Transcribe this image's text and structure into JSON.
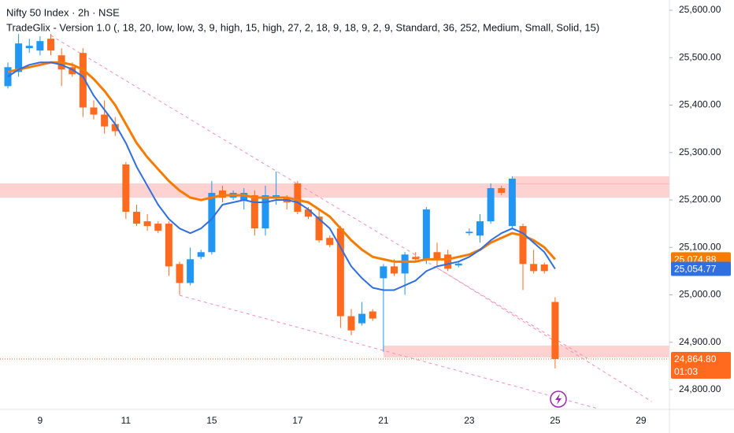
{
  "chart_data": {
    "type": "candlestick",
    "title": "Nifty 50 Index · 2h · NSE",
    "subtitle": "TradeGlix - Version 1.0 (, 18, 20, low, low, 3, 9, high, 15, high, 27, 2, 18, 9, 18, 9, 2, 9, Standard, 36, 252, Medium, Small, Solid, 15)",
    "categories": [
      null,
      null,
      null,
      "9",
      null,
      null,
      null,
      null,
      null,
      null,
      null,
      "11",
      null,
      null,
      null,
      null,
      null,
      null,
      null,
      "15",
      null,
      null,
      null,
      null,
      null,
      null,
      null,
      "17",
      null,
      null,
      null,
      null,
      null,
      null,
      null,
      "21",
      null,
      null,
      null,
      null,
      null,
      null,
      null,
      "23",
      null,
      null,
      null,
      null,
      null,
      null,
      null,
      "25",
      null,
      null,
      null,
      null,
      null,
      null,
      null,
      "29"
    ],
    "open": [
      25440,
      25470,
      25520,
      25515,
      25540,
      25505,
      25480,
      25510,
      25395,
      25380,
      25360,
      25275,
      25175,
      25155,
      25150,
      25150,
      25065,
      25025,
      25080,
      25090,
      25220,
      25205,
      25200,
      25210,
      25140,
      25205,
      25205,
      25235,
      25180,
      25165,
      25120,
      25140,
      24955,
      24940,
      24965,
      25035,
      25060,
      25045,
      25080,
      25075,
      25090,
      25085,
      25062,
      25130,
      25125,
      25155,
      25225,
      25145,
      25145,
      25065,
      25064,
      24985,
      null,
      null,
      null,
      null,
      null,
      null,
      null,
      null
    ],
    "high": [
      25490,
      25550,
      25540,
      25545,
      25550,
      25520,
      25490,
      25520,
      25410,
      25410,
      25375,
      25280,
      25190,
      25170,
      25155,
      25155,
      25070,
      25100,
      25095,
      25240,
      25230,
      25220,
      25225,
      25220,
      25230,
      25260,
      25210,
      25240,
      25185,
      25180,
      25125,
      25145,
      24970,
      24985,
      24970,
      25065,
      25075,
      25090,
      25090,
      25185,
      25110,
      25095,
      25070,
      25140,
      25170,
      25235,
      25230,
      25250,
      25150,
      25095,
      25068,
      24995,
      null,
      null,
      null,
      null,
      null,
      null,
      null,
      null
    ],
    "low": [
      25435,
      25460,
      25510,
      25505,
      25505,
      25440,
      25460,
      25375,
      25370,
      25340,
      25335,
      25160,
      25145,
      25135,
      25130,
      25040,
      25000,
      25020,
      25075,
      25085,
      25195,
      25200,
      25180,
      25125,
      25125,
      25190,
      25180,
      25170,
      25160,
      25110,
      25100,
      24930,
      24915,
      24935,
      24945,
      24880,
      25040,
      25000,
      25070,
      25065,
      25060,
      25050,
      25058,
      25125,
      25110,
      25150,
      25210,
      25140,
      25010,
      25045,
      25045,
      24845,
      null,
      null,
      null,
      null,
      null,
      null,
      null,
      null
    ],
    "close": [
      25480,
      25530,
      25525,
      25535,
      25515,
      25475,
      25465,
      25395,
      25380,
      25355,
      25345,
      25175,
      25150,
      25145,
      25135,
      25060,
      25025,
      25075,
      25090,
      25215,
      25205,
      25215,
      25215,
      25140,
      25210,
      25210,
      25195,
      25175,
      25165,
      25115,
      25105,
      24955,
      24925,
      24960,
      24950,
      25060,
      25045,
      25085,
      25075,
      25180,
      25075,
      25055,
      25066,
      25133,
      25155,
      25225,
      25215,
      25245,
      25065,
      25050,
      25050,
      24864.8,
      null,
      null,
      null,
      null,
      null,
      null,
      null,
      null
    ],
    "up_color": "#2196f3",
    "down_color": "#ff6a1f",
    "lines": [
      {
        "color": "#f57c00",
        "width": 3,
        "values": [
          25470,
          25475,
          25480,
          25485,
          25490,
          25490,
          25485,
          25475,
          25455,
          25430,
          25400,
          25360,
          25320,
          25290,
          25265,
          25240,
          25220,
          25205,
          25200,
          25205,
          25210,
          25210,
          25210,
          25205,
          25205,
          25205,
          25205,
          25200,
          25195,
          25180,
          25165,
          25140,
          25115,
          25095,
          25080,
          25075,
          25070,
          25070,
          25070,
          25075,
          25075,
          25075,
          25080,
          25085,
          25095,
          25110,
          25120,
          25130,
          25125,
          25115,
          25100,
          25074.88,
          null,
          null,
          null,
          null,
          null,
          null,
          null,
          null
        ],
        "tag": "25,074.88"
      },
      {
        "color": "#2f6fe0",
        "width": 2,
        "values": [
          25460,
          25475,
          25485,
          25490,
          25490,
          25485,
          25475,
          25460,
          25420,
          25390,
          25360,
          25320,
          25270,
          25230,
          25190,
          25160,
          25140,
          25130,
          25140,
          25160,
          25190,
          25195,
          25200,
          25195,
          25195,
          25200,
          25200,
          25195,
          25180,
          25160,
          25140,
          25100,
          25060,
          25035,
          25015,
          25010,
          25010,
          25020,
          25030,
          25050,
          25060,
          25065,
          25070,
          25080,
          25095,
          25115,
          25130,
          25140,
          25130,
          25110,
          25090,
          25054.77,
          null,
          null,
          null,
          null,
          null,
          null,
          null,
          null
        ],
        "tag": "25,054.77"
      }
    ],
    "last_price": {
      "value": 24864.8,
      "label": "24,864.80",
      "countdown": "01:03",
      "color": "#ff6a1f"
    },
    "zones": [
      {
        "from": 0,
        "low": 25205,
        "high": 25235
      },
      {
        "from": 47,
        "low": 25233,
        "high": 25250
      },
      {
        "from": 35,
        "low": 24868,
        "high": 24893
      }
    ],
    "trendlines": [
      {
        "x": [
          4,
          54
        ],
        "y": [
          25547,
          24866
        ]
      },
      {
        "x": [
          16,
          55
        ],
        "y": [
          24999,
          24760
        ]
      },
      {
        "x": [
          40,
          60
        ],
        "y": [
          25057,
          24775
        ]
      }
    ],
    "ylim": [
      24758.5,
      25621.6
    ],
    "yticks": [
      {
        "value": 24800,
        "label": "24,800.00"
      },
      {
        "value": 24900,
        "label": "24,900.00"
      },
      {
        "value": 25000,
        "label": "25,000.00"
      },
      {
        "value": 25100,
        "label": "25,100.00"
      },
      {
        "value": 25200,
        "label": "25,200.00"
      },
      {
        "value": 25300,
        "label": "25,300.00"
      },
      {
        "value": 25400,
        "label": "25,400.00"
      },
      {
        "value": 25500,
        "label": "25,500.00"
      },
      {
        "value": 25600,
        "label": "25,600.00"
      }
    ]
  }
}
